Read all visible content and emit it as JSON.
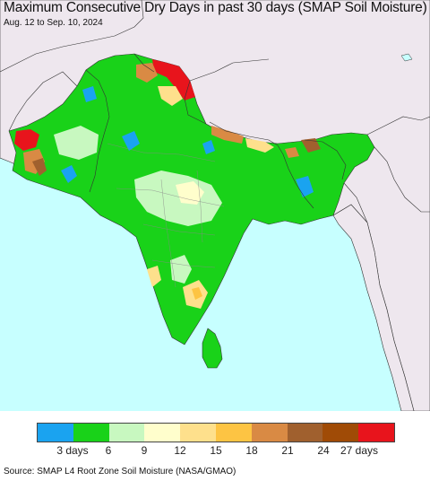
{
  "title": "Maximum Consecutive Dry Days in past 30 days (SMAP Soil Moisture)",
  "date_range": "Aug. 12 to Sep. 10, 2024",
  "source": "Source: SMAP L4 Root Zone Soil Moisture (NASA/GMAO)",
  "legend": {
    "colors": [
      "#1aa3f0",
      "#19d219",
      "#c8f8c0",
      "#fffecc",
      "#fee08c",
      "#fdc443",
      "#d98a44",
      "#a0602e",
      "#a04b06",
      "#e8141c"
    ],
    "labels": [
      "3 days",
      "6",
      "9",
      "12",
      "15",
      "18",
      "21",
      "24",
      "27 days"
    ]
  },
  "map_colors": {
    "ocean": "#c7ffff",
    "land_outside": "#eee7ee",
    "high_terrain": "#e8e0e8"
  }
}
